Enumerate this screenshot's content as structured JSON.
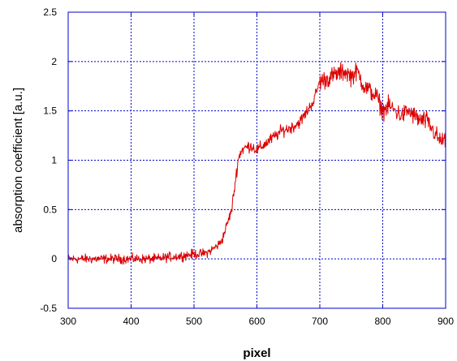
{
  "chart_data": {
    "type": "line",
    "title": "",
    "xlabel": "pixel",
    "ylabel": "absorption coefficient [a.u.]",
    "xlim": [
      300,
      900
    ],
    "ylim": [
      -0.5,
      2.5
    ],
    "grid": true,
    "grid_style": "dotted",
    "x_ticks": [
      300,
      400,
      500,
      600,
      700,
      800,
      900
    ],
    "y_ticks": [
      -0.5,
      0,
      0.5,
      1,
      1.5,
      2,
      2.5
    ],
    "x_tick_labels": [
      "300",
      "400",
      "500",
      "600",
      "700",
      "800",
      "900"
    ],
    "y_tick_labels": [
      "-0.5",
      "0",
      "0.5",
      "1",
      "1.5",
      "2",
      "2.5"
    ],
    "colors": {
      "series": "#dd0000",
      "axes": "#0000cc",
      "grid": "#0000cc"
    },
    "series": [
      {
        "x": [
          300,
          320,
          340,
          360,
          380,
          400,
          420,
          440,
          460,
          480,
          500,
          510,
          520,
          530,
          540,
          545,
          550,
          555,
          560,
          565,
          570,
          575,
          580,
          590,
          600,
          610,
          620,
          630,
          640,
          650,
          660,
          670,
          680,
          690,
          700,
          710,
          720,
          730,
          740,
          750,
          760,
          770,
          780,
          790,
          800,
          810,
          820,
          830,
          840,
          850,
          860,
          870,
          880,
          890,
          900
        ],
        "y": [
          0.0,
          0.0,
          0.0,
          0.0,
          0.0,
          0.0,
          0.0,
          0.0,
          0.02,
          0.03,
          0.05,
          0.05,
          0.06,
          0.1,
          0.15,
          0.2,
          0.3,
          0.4,
          0.5,
          0.75,
          1.0,
          1.1,
          1.12,
          1.15,
          1.1,
          1.15,
          1.2,
          1.25,
          1.3,
          1.32,
          1.35,
          1.4,
          1.5,
          1.6,
          1.8,
          1.82,
          1.85,
          1.88,
          1.9,
          1.85,
          1.9,
          1.75,
          1.7,
          1.65,
          1.5,
          1.55,
          1.5,
          1.45,
          1.5,
          1.45,
          1.4,
          1.4,
          1.3,
          1.2,
          1.2
        ]
      }
    ]
  }
}
